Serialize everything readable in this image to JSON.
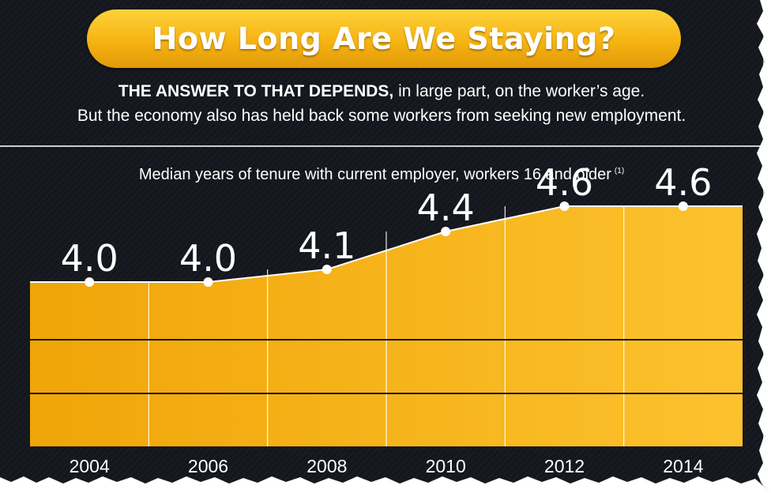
{
  "header": {
    "title": "How Long Are We Staying?",
    "subtitle_strong": "THE ANSWER TO THAT DEPENDS,",
    "subtitle_line1_rest": " in large part, on the worker’s age.",
    "subtitle_line2": "But the economy also has held back some workers from seeking new employment."
  },
  "chart_data": {
    "type": "area",
    "title": "Median years of tenure with current employer, workers 16 and older",
    "title_footnote": "(1)",
    "categories": [
      "2004",
      "2006",
      "2008",
      "2010",
      "2012",
      "2014"
    ],
    "values": [
      4.0,
      4.0,
      4.1,
      4.4,
      4.6,
      4.6
    ],
    "value_labels": [
      "4.0",
      "4.0",
      "4.1",
      "4.4",
      "4.6",
      "4.6"
    ],
    "grid": true,
    "legend": "none"
  },
  "colors": {
    "background": "#14171d",
    "area_light": "#fcc22e",
    "area_dark": "#f0a508",
    "title_pill": "#f6b312",
    "text": "#ffffff"
  }
}
